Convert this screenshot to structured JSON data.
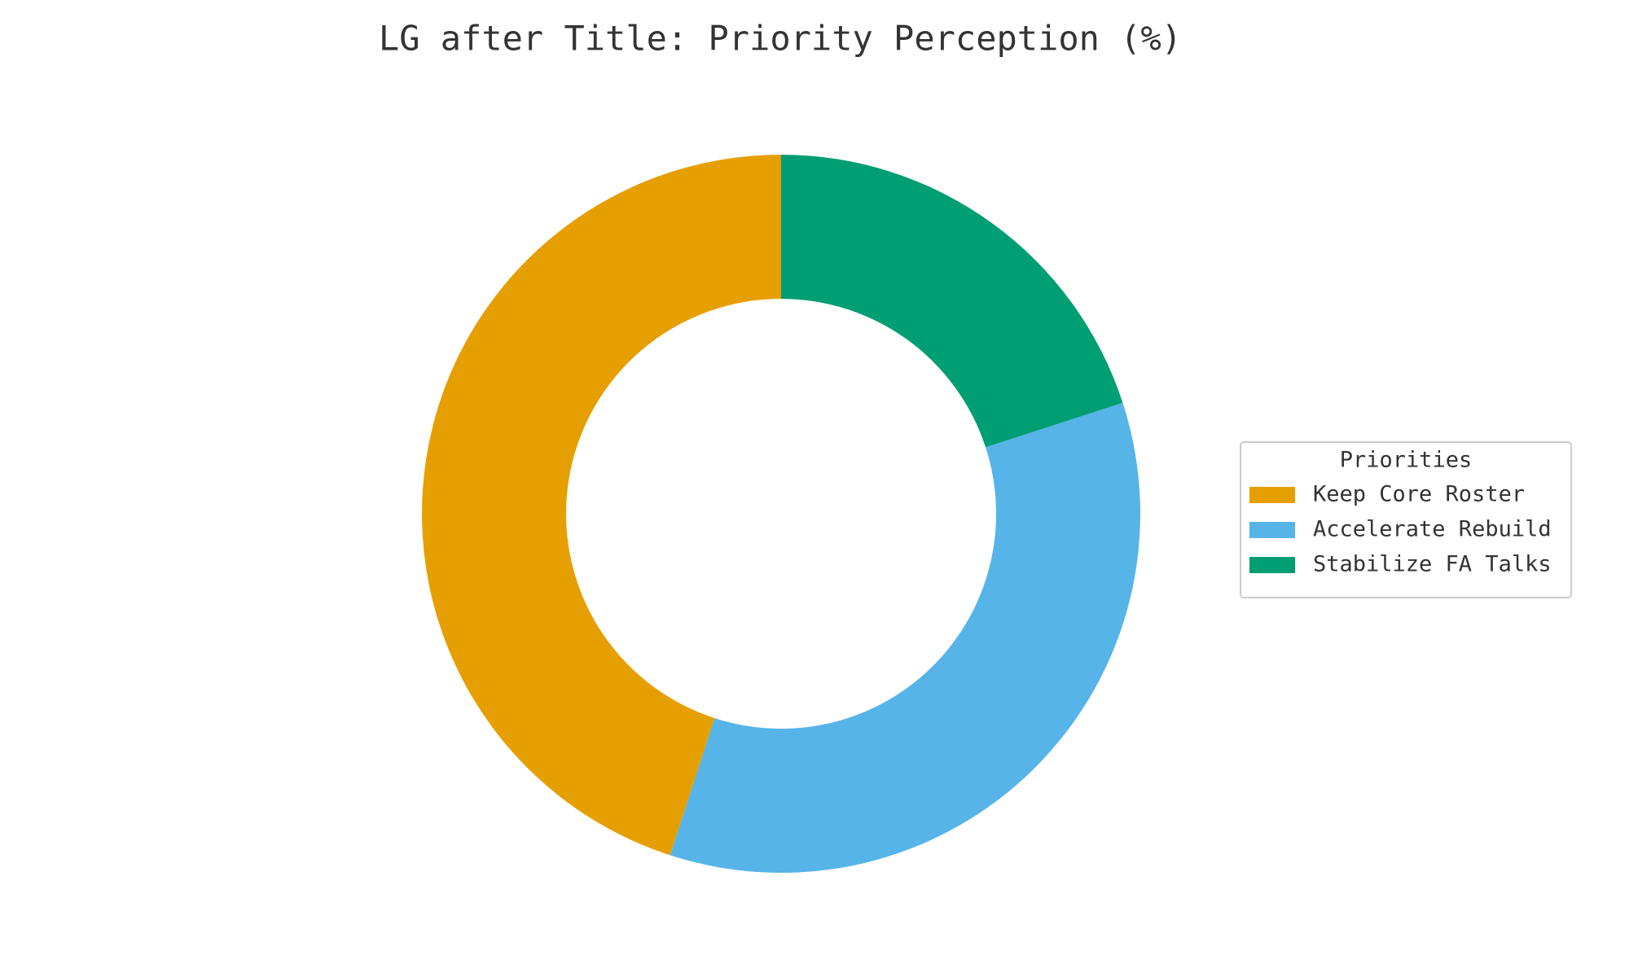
{
  "chart_data": {
    "type": "pie",
    "title": "LG after Title: Priority Perception (%)",
    "categories": [
      "Keep Core Roster",
      "Accelerate Rebuild",
      "Stabilize FA Talks"
    ],
    "values": [
      45,
      35,
      20
    ],
    "colors": [
      "#e69f00",
      "#56b4e9",
      "#009e73"
    ],
    "donut": true,
    "legend_title": "Priorities",
    "legend": "right"
  }
}
